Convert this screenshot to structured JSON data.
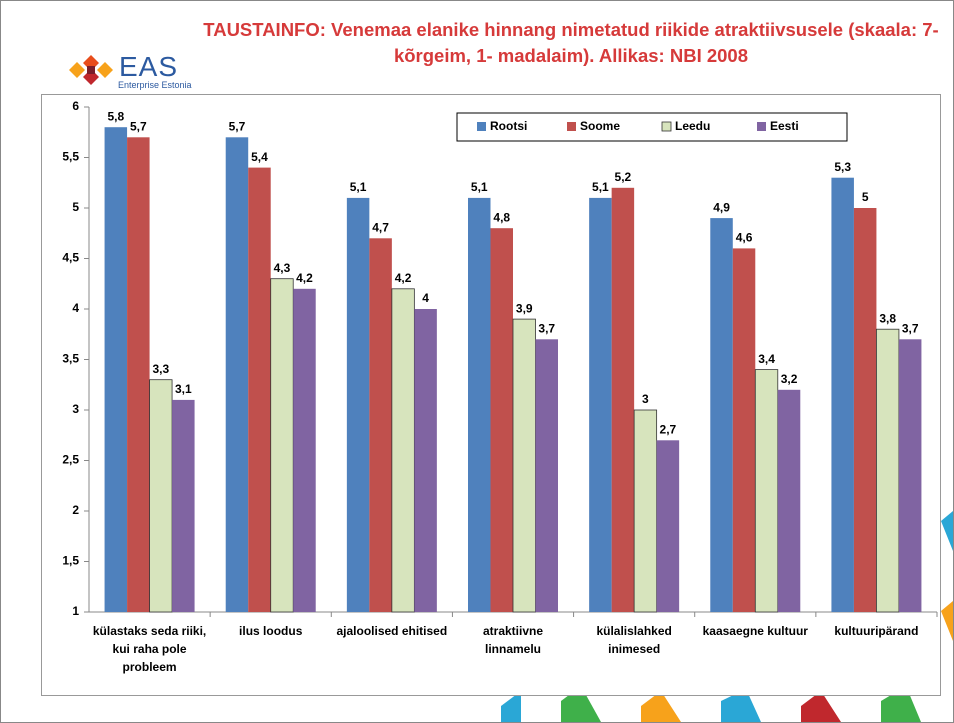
{
  "logo": {
    "name": "EAS",
    "tagline": "Enterprise Estonia"
  },
  "chart_data": {
    "type": "bar",
    "title": "TAUSTAINFO: Venemaa elanike hinnang nimetatud riikide atraktiivsusele (skaala: 7- kõrgeim, 1- madalaim). Allikas: NBI 2008",
    "categories": [
      "külastaks seda riiki, kui raha pole probleem",
      "ilus loodus",
      "ajaloolised ehitised",
      "atraktiivne linnamelu",
      "külalislahked inimesed",
      "kaasaegne kultuur",
      "kultuuripärand"
    ],
    "series": [
      {
        "name": "Rootsi",
        "color": "#4f81bd",
        "values": [
          5.8,
          5.7,
          5.1,
          5.1,
          5.1,
          4.9,
          5.3
        ],
        "value_labels": [
          "5,8",
          "5,7",
          "5,1",
          "5,1",
          "5,1",
          "4,9",
          "5,3"
        ]
      },
      {
        "name": "Soome",
        "color": "#c0504d",
        "values": [
          5.7,
          5.4,
          4.7,
          4.8,
          5.2,
          4.6,
          5
        ],
        "value_labels": [
          "5,7",
          "5,4",
          "4,7",
          "4,8",
          "5,2",
          "4,6",
          "5"
        ]
      },
      {
        "name": "Leedu",
        "color": "#d7e4bd",
        "values": [
          3.3,
          4.3,
          4.2,
          3.9,
          3,
          3.4,
          3.8
        ],
        "value_labels": [
          "3,3",
          "4,3",
          "4,2",
          "3,9",
          "3",
          "3,4",
          "3,8"
        ]
      },
      {
        "name": "Eesti",
        "color": "#8064a2",
        "values": [
          3.1,
          4.2,
          4,
          3.7,
          2.7,
          3.2,
          3.7
        ],
        "value_labels": [
          "3,1",
          "4,2",
          "4",
          "3,7",
          "2,7",
          "3,2",
          "3,7"
        ]
      }
    ],
    "ylim": [
      1,
      6
    ],
    "yticks": [
      1,
      {
        "value": 1.5,
        "label": "1,5"
      },
      2,
      {
        "value": 2.5,
        "label": "2,5"
      },
      3,
      {
        "value": 3.5,
        "label": "3,5"
      },
      4,
      {
        "value": 4.5,
        "label": "4,5"
      },
      5,
      {
        "value": 5.5,
        "label": "5,5"
      },
      6
    ],
    "grid": false,
    "legend": "top-right"
  }
}
